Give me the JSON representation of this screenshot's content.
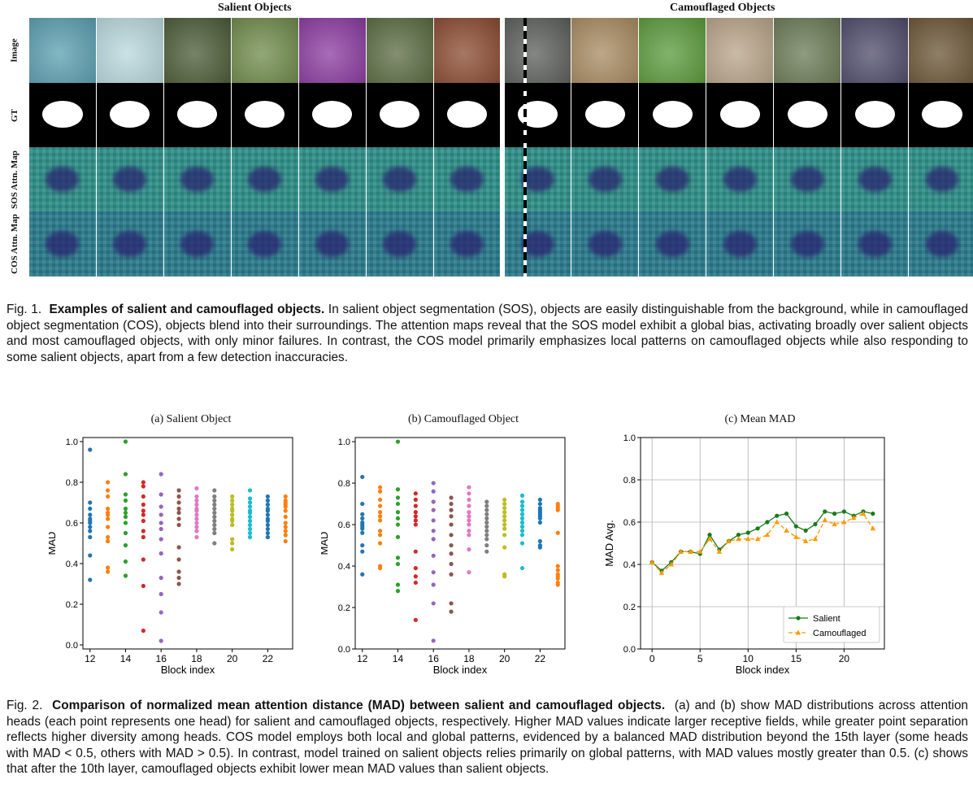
{
  "figure1": {
    "group_titles": [
      "Salient Objects",
      "Camouflaged Objects"
    ],
    "row_labels": [
      "Image",
      "GT",
      "SOS Attn. Map",
      "COS Attn. Map"
    ],
    "image_colors": [
      "#5a9fb0",
      "#b9d8dc",
      "#4a5a35",
      "#6f8a4a",
      "#8a3aa0",
      "#5a6a40",
      "#8a4a30",
      "#5b5e5a",
      "#a88a60",
      "#5a9a3a",
      "#b8a488",
      "#6a7a55",
      "#4e4a6a",
      "#6a5535"
    ]
  },
  "caption1": {
    "label": "Fig. 1.",
    "bold": "Examples of salient and camouflaged objects.",
    "text": "In salient object segmentation (SOS), objects are easily distinguishable from the background, while in camouflaged object segmentation (COS), objects blend into their surroundings. The attention maps reveal that the SOS model exhibit a global bias, activating broadly over salient objects and most camouflaged objects, with only minor failures. In contrast, the COS model primarily emphasizes local patterns on camouflaged objects while also responding to some salient objects, apart from a few detection inaccuracies."
  },
  "caption2": {
    "label": "Fig. 2.",
    "bold": "Comparison of normalized mean attention distance (MAD) between salient and camouflaged objects.",
    "text": "(a) and (b) show MAD distributions across attention heads (each point represents one head) for salient and camouflaged objects, respectively. Higher MAD values indicate larger receptive fields, while greater point separation reflects higher diversity among heads. COS model employs both local and global patterns, evidenced by a balanced MAD distribution beyond the 15th layer (some heads with MAD < 0.5, others with MAD > 0.5). In contrast, model trained on salient objects relies primarily on global patterns, with MAD values mostly greater than 0.5. (c) shows that after the 10th layer, camouflaged objects exhibit lower mean MAD values than salient objects."
  },
  "chart_data": [
    {
      "type": "scatter",
      "title": "(a) Salient Object",
      "xlabel": "Block index",
      "ylabel": "MAD",
      "xlim": [
        11.6,
        23.4
      ],
      "ylim": [
        -0.02,
        1.02
      ],
      "xticks": [
        12,
        14,
        16,
        18,
        20,
        22
      ],
      "yticks": [
        0.0,
        0.2,
        0.4,
        0.6,
        0.8,
        1.0
      ],
      "grid": false,
      "series": [
        {
          "x": 12,
          "color": "#1f77b4",
          "values": [
            0.96,
            0.7,
            0.67,
            0.64,
            0.62,
            0.61,
            0.6,
            0.58,
            0.56,
            0.53,
            0.44,
            0.32
          ]
        },
        {
          "x": 13,
          "color": "#ff7f0e",
          "values": [
            0.8,
            0.76,
            0.73,
            0.67,
            0.65,
            0.64,
            0.62,
            0.58,
            0.53,
            0.51,
            0.38,
            0.36
          ]
        },
        {
          "x": 14,
          "color": "#2ca02c",
          "values": [
            1.0,
            0.84,
            0.74,
            0.71,
            0.67,
            0.65,
            0.63,
            0.6,
            0.55,
            0.49,
            0.41,
            0.34
          ]
        },
        {
          "x": 15,
          "color": "#d62728",
          "values": [
            0.8,
            0.78,
            0.73,
            0.69,
            0.66,
            0.64,
            0.61,
            0.56,
            0.53,
            0.42,
            0.29,
            0.07
          ]
        },
        {
          "x": 16,
          "color": "#9467bd",
          "values": [
            0.84,
            0.74,
            0.68,
            0.64,
            0.6,
            0.57,
            0.52,
            0.45,
            0.33,
            0.25,
            0.16,
            0.02
          ]
        },
        {
          "x": 17,
          "color": "#8c564b",
          "values": [
            0.76,
            0.73,
            0.7,
            0.67,
            0.65,
            0.62,
            0.59,
            0.48,
            0.42,
            0.36,
            0.33,
            0.3
          ]
        },
        {
          "x": 18,
          "color": "#e377c2",
          "values": [
            0.77,
            0.73,
            0.71,
            0.69,
            0.67,
            0.66,
            0.64,
            0.62,
            0.6,
            0.58,
            0.56,
            0.53
          ]
        },
        {
          "x": 19,
          "color": "#7f7f7f",
          "values": [
            0.76,
            0.73,
            0.71,
            0.69,
            0.67,
            0.65,
            0.63,
            0.61,
            0.59,
            0.57,
            0.55,
            0.5
          ]
        },
        {
          "x": 20,
          "color": "#bcbd22",
          "values": [
            0.73,
            0.71,
            0.69,
            0.67,
            0.66,
            0.64,
            0.62,
            0.61,
            0.59,
            0.52,
            0.5,
            0.47
          ]
        },
        {
          "x": 21,
          "color": "#17becf",
          "values": [
            0.76,
            0.72,
            0.7,
            0.68,
            0.66,
            0.65,
            0.63,
            0.61,
            0.59,
            0.57,
            0.55,
            0.53
          ]
        },
        {
          "x": 22,
          "color": "#1f77b4",
          "values": [
            0.73,
            0.71,
            0.69,
            0.67,
            0.66,
            0.64,
            0.62,
            0.61,
            0.59,
            0.57,
            0.55,
            0.53
          ]
        },
        {
          "x": 23,
          "color": "#ff7f0e",
          "values": [
            0.73,
            0.71,
            0.7,
            0.69,
            0.68,
            0.66,
            0.63,
            0.6,
            0.58,
            0.56,
            0.54,
            0.51
          ]
        }
      ]
    },
    {
      "type": "scatter",
      "title": "(b) Camouflaged Object",
      "xlabel": "Block index",
      "ylabel": "MAD",
      "xlim": [
        11.6,
        23.4
      ],
      "ylim": [
        0.0,
        1.02
      ],
      "xticks": [
        12,
        14,
        16,
        18,
        20,
        22
      ],
      "yticks": [
        0.0,
        0.2,
        0.4,
        0.6,
        0.8,
        1.0
      ],
      "grid": false,
      "series": [
        {
          "x": 12,
          "color": "#1f77b4",
          "values": [
            0.83,
            0.7,
            0.65,
            0.63,
            0.61,
            0.6,
            0.59,
            0.58,
            0.56,
            0.5,
            0.47,
            0.36
          ]
        },
        {
          "x": 13,
          "color": "#ff7f0e",
          "values": [
            0.78,
            0.76,
            0.72,
            0.69,
            0.66,
            0.64,
            0.62,
            0.57,
            0.55,
            0.51,
            0.4,
            0.39
          ]
        },
        {
          "x": 14,
          "color": "#2ca02c",
          "values": [
            1.0,
            0.77,
            0.73,
            0.7,
            0.66,
            0.63,
            0.6,
            0.54,
            0.44,
            0.41,
            0.31,
            0.28
          ]
        },
        {
          "x": 15,
          "color": "#d62728",
          "values": [
            0.75,
            0.72,
            0.69,
            0.66,
            0.64,
            0.62,
            0.6,
            0.47,
            0.39,
            0.35,
            0.32,
            0.14
          ]
        },
        {
          "x": 16,
          "color": "#9467bd",
          "values": [
            0.8,
            0.76,
            0.71,
            0.67,
            0.62,
            0.57,
            0.53,
            0.45,
            0.37,
            0.31,
            0.22,
            0.04
          ]
        },
        {
          "x": 17,
          "color": "#8c564b",
          "values": [
            0.73,
            0.7,
            0.67,
            0.64,
            0.6,
            0.55,
            0.5,
            0.46,
            0.41,
            0.36,
            0.22,
            0.18
          ]
        },
        {
          "x": 18,
          "color": "#e377c2",
          "values": [
            0.78,
            0.75,
            0.72,
            0.69,
            0.66,
            0.64,
            0.62,
            0.6,
            0.57,
            0.55,
            0.48,
            0.37
          ]
        },
        {
          "x": 19,
          "color": "#7f7f7f",
          "values": [
            0.71,
            0.69,
            0.67,
            0.65,
            0.63,
            0.61,
            0.59,
            0.57,
            0.55,
            0.53,
            0.5,
            0.47
          ]
        },
        {
          "x": 20,
          "color": "#bcbd22",
          "values": [
            0.72,
            0.7,
            0.68,
            0.66,
            0.64,
            0.62,
            0.6,
            0.58,
            0.55,
            0.49,
            0.36,
            0.35
          ]
        },
        {
          "x": 21,
          "color": "#17becf",
          "values": [
            0.74,
            0.71,
            0.69,
            0.67,
            0.65,
            0.63,
            0.61,
            0.59,
            0.57,
            0.55,
            0.51,
            0.39
          ]
        },
        {
          "x": 22,
          "color": "#1f77b4",
          "values": [
            0.72,
            0.7,
            0.68,
            0.67,
            0.66,
            0.65,
            0.64,
            0.63,
            0.61,
            0.52,
            0.5,
            0.49
          ]
        },
        {
          "x": 23,
          "color": "#ff7f0e",
          "values": [
            0.7,
            0.69,
            0.68,
            0.67,
            0.56,
            0.4,
            0.38,
            0.36,
            0.35,
            0.34,
            0.32,
            0.31
          ]
        }
      ]
    },
    {
      "type": "line",
      "title": "(c) Mean MAD",
      "xlabel": "Block index",
      "ylabel": "MAD Avg.",
      "xlim": [
        -1.2,
        24.2
      ],
      "ylim": [
        0.0,
        1.0
      ],
      "xticks": [
        0,
        5,
        10,
        15,
        20
      ],
      "yticks": [
        0.0,
        0.2,
        0.4,
        0.6,
        0.8,
        1.0
      ],
      "grid": true,
      "legend": "lower-right",
      "x": [
        0,
        1,
        2,
        3,
        4,
        5,
        6,
        7,
        8,
        9,
        10,
        11,
        12,
        13,
        14,
        15,
        16,
        17,
        18,
        19,
        20,
        21,
        22,
        23
      ],
      "series": [
        {
          "name": "Salient",
          "color": "#1a7a1a",
          "marker": "circle",
          "dashed": false,
          "values": [
            0.41,
            0.37,
            0.41,
            0.46,
            0.46,
            0.45,
            0.54,
            0.47,
            0.51,
            0.54,
            0.55,
            0.57,
            0.6,
            0.63,
            0.64,
            0.58,
            0.56,
            0.59,
            0.65,
            0.64,
            0.65,
            0.63,
            0.65,
            0.64
          ]
        },
        {
          "name": "Camouflaged",
          "color": "#ff9900",
          "marker": "triangle",
          "dashed": true,
          "values": [
            0.41,
            0.36,
            0.4,
            0.46,
            0.46,
            0.46,
            0.52,
            0.46,
            0.51,
            0.52,
            0.52,
            0.52,
            0.54,
            0.6,
            0.56,
            0.53,
            0.51,
            0.52,
            0.61,
            0.59,
            0.6,
            0.62,
            0.64,
            0.57
          ]
        }
      ]
    }
  ]
}
